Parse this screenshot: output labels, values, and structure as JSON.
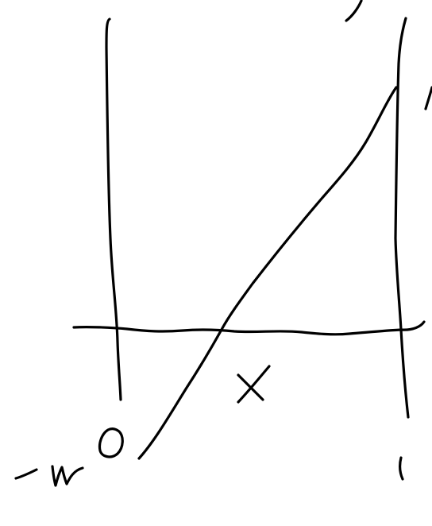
{
  "drawing": {
    "ink_color": "#000000",
    "background_color": "#ffffff",
    "labels": {
      "x_axis_variable": "X",
      "left_bottom_value": "-w0",
      "right_bottom_value": "1"
    }
  }
}
